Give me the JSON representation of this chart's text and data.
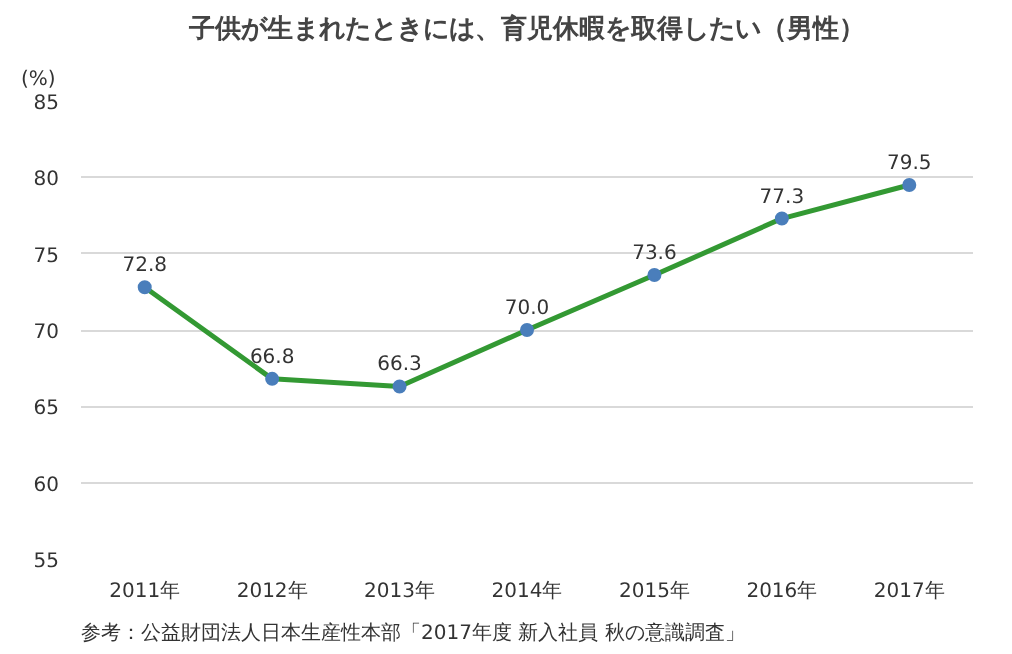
{
  "chart_data": {
    "type": "line",
    "title": "子供が生まれたときには、育児休暇を取得したい（男性）",
    "ylabel": "(%)",
    "categories": [
      "2011年",
      "2012年",
      "2013年",
      "2014年",
      "2015年",
      "2016年",
      "2017年"
    ],
    "series": [
      {
        "color": "#339933",
        "values": [
          72.8,
          66.8,
          66.3,
          70.0,
          73.6,
          77.3,
          79.5
        ]
      }
    ],
    "ylim": [
      55,
      85
    ],
    "yticks": [
      55,
      60,
      65,
      70,
      75,
      80,
      85
    ],
    "grid": "y",
    "marker": "circle",
    "line_style": "solid",
    "value_labels": [
      "72.8",
      "66.8",
      "66.3",
      "70.0",
      "73.6",
      "77.3",
      "79.5"
    ],
    "annotations": [
      "参考：公益財団法人日本生産性本部「2017年度 新入社員 秋の意識調査」"
    ]
  }
}
